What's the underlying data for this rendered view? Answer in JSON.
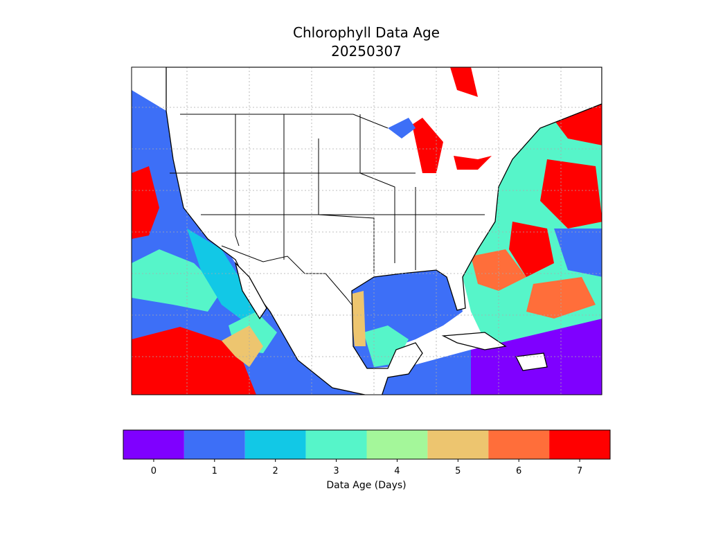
{
  "title": "Chlorophyll Data Age",
  "date": "20250307",
  "colorbar": {
    "label": "Data Age (Days)",
    "ticks": [
      0,
      1,
      2,
      3,
      4,
      5,
      6,
      7
    ],
    "colors": [
      "#7f00ff",
      "#3d6ff7",
      "#12c8e6",
      "#56f5c9",
      "#a4f79a",
      "#edc56f",
      "#ff6e3a",
      "#ff0000"
    ]
  }
}
